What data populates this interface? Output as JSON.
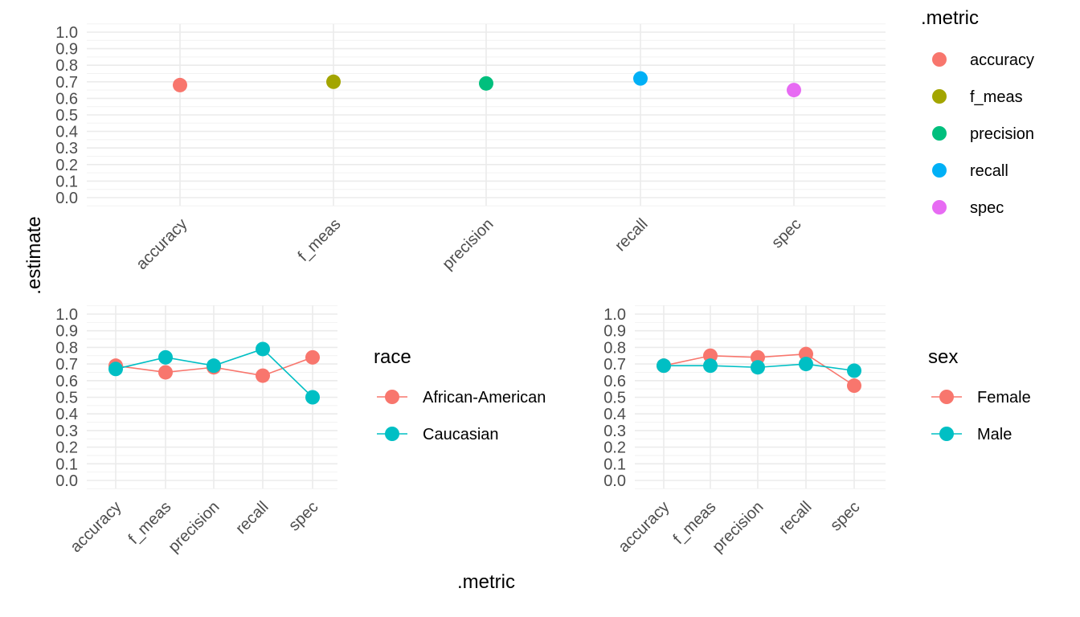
{
  "axis_titles": {
    "y": ".estimate",
    "x": ".metric"
  },
  "chart_data": [
    {
      "type": "scatter",
      "categories": [
        "accuracy",
        "f_meas",
        "precision",
        "recall",
        "spec"
      ],
      "yticks": [
        "0.0",
        "0.1",
        "0.2",
        "0.3",
        "0.4",
        "0.5",
        "0.6",
        "0.7",
        "0.8",
        "0.9",
        "1.0"
      ],
      "ylim": [
        0,
        1
      ],
      "grid": true,
      "legend": {
        "title": ".metric",
        "placement": "right",
        "entries": [
          {
            "label": "accuracy",
            "color": "#F8766D"
          },
          {
            "label": "f_meas",
            "color": "#A3A500"
          },
          {
            "label": "precision",
            "color": "#00BF7D"
          },
          {
            "label": "recall",
            "color": "#00B0F6"
          },
          {
            "label": "spec",
            "color": "#E76BF3"
          }
        ]
      },
      "values": [
        0.68,
        0.7,
        0.69,
        0.72,
        0.65
      ]
    },
    {
      "type": "line",
      "categories": [
        "accuracy",
        "f_meas",
        "precision",
        "recall",
        "spec"
      ],
      "yticks": [
        "0.0",
        "0.1",
        "0.2",
        "0.3",
        "0.4",
        "0.5",
        "0.6",
        "0.7",
        "0.8",
        "0.9",
        "1.0"
      ],
      "ylim": [
        0,
        1
      ],
      "grid": true,
      "legend": {
        "title": "race",
        "placement": "right"
      },
      "series": [
        {
          "name": "African-American",
          "color": "#F8766D",
          "values": [
            0.69,
            0.65,
            0.68,
            0.63,
            0.74
          ]
        },
        {
          "name": "Caucasian",
          "color": "#00BFC4",
          "values": [
            0.67,
            0.74,
            0.69,
            0.79,
            0.5
          ]
        }
      ]
    },
    {
      "type": "line",
      "categories": [
        "accuracy",
        "f_meas",
        "precision",
        "recall",
        "spec"
      ],
      "yticks": [
        "0.0",
        "0.1",
        "0.2",
        "0.3",
        "0.4",
        "0.5",
        "0.6",
        "0.7",
        "0.8",
        "0.9",
        "1.0"
      ],
      "ylim": [
        0,
        1
      ],
      "grid": true,
      "legend": {
        "title": "sex",
        "placement": "right"
      },
      "series": [
        {
          "name": "Female",
          "color": "#F8766D",
          "values": [
            0.69,
            0.75,
            0.74,
            0.76,
            0.57
          ]
        },
        {
          "name": "Male",
          "color": "#00BFC4",
          "values": [
            0.69,
            0.69,
            0.68,
            0.7,
            0.66
          ]
        }
      ]
    }
  ]
}
